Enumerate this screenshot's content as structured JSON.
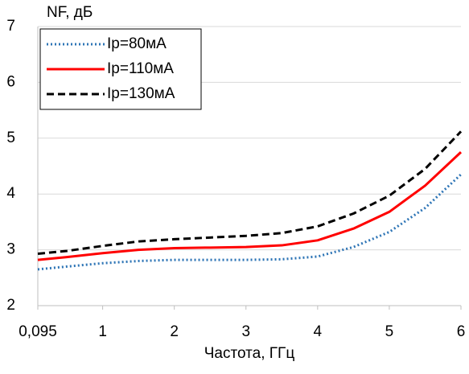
{
  "chart_data": {
    "type": "line",
    "ylabel": "NF, дБ",
    "xlabel": "Частота, ГГц",
    "x": [
      0.095,
      0.5,
      1,
      1.5,
      2,
      2.5,
      3,
      3.5,
      4,
      4.5,
      5,
      5.5,
      6
    ],
    "series": [
      {
        "name": "Ip=80мА",
        "color": "#2e75b6",
        "line_style": "dotted",
        "values": [
          2.65,
          2.7,
          2.76,
          2.8,
          2.82,
          2.82,
          2.82,
          2.83,
          2.88,
          3.05,
          3.32,
          3.75,
          4.35
        ]
      },
      {
        "name": "Ip=110мА",
        "color": "#ff0000",
        "line_style": "solid",
        "values": [
          2.82,
          2.87,
          2.94,
          3.0,
          3.03,
          3.04,
          3.05,
          3.08,
          3.17,
          3.38,
          3.68,
          4.15,
          4.75
        ]
      },
      {
        "name": "Ip=130мА",
        "color": "#000000",
        "line_style": "dashed",
        "values": [
          2.93,
          2.98,
          3.07,
          3.15,
          3.19,
          3.22,
          3.25,
          3.3,
          3.42,
          3.65,
          3.97,
          4.45,
          5.12
        ]
      }
    ],
    "xlim": [
      0.095,
      6
    ],
    "xticks": [
      {
        "value": 0.095,
        "label": "0,095"
      },
      1,
      2,
      3,
      4,
      5,
      6
    ],
    "ylim": [
      2,
      7
    ],
    "yticks": [
      2,
      3,
      4,
      5,
      6,
      7
    ],
    "grid": true,
    "legend": "top-left"
  }
}
